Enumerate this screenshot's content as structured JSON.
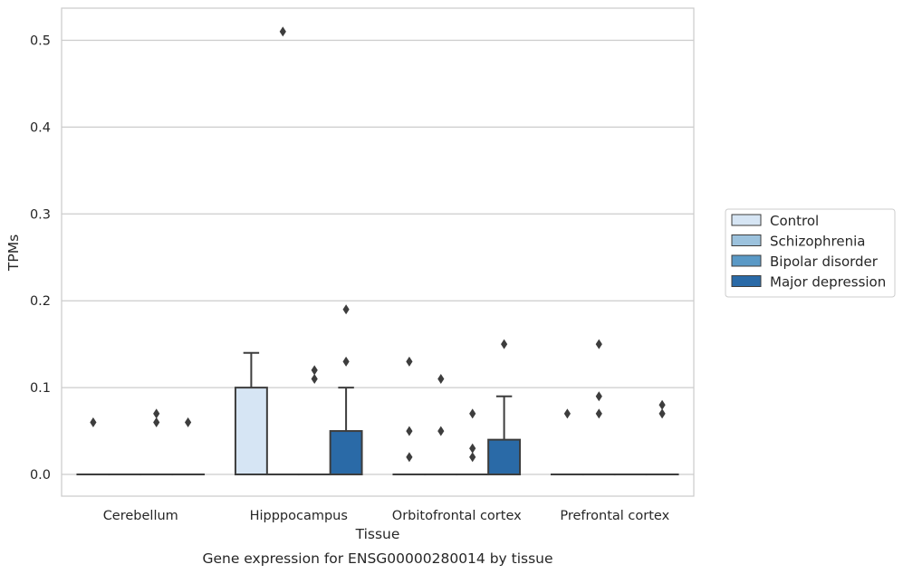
{
  "chart_data": {
    "type": "box",
    "caption": "Gene expression for ENSG00000280014 by tissue",
    "xlabel": "Tissue",
    "ylabel": "TPMs",
    "ylim": [
      -0.025,
      0.537
    ],
    "yticks": [
      0.0,
      0.1,
      0.2,
      0.3,
      0.4,
      0.5
    ],
    "ytick_labels": [
      "0.0",
      "0.1",
      "0.2",
      "0.3",
      "0.4",
      "0.5"
    ],
    "grid": "horizontal",
    "legend_position": "right",
    "categories": [
      "Cerebellum",
      "Hipppocampus",
      "Orbitofrontal cortex",
      "Prefrontal cortex"
    ],
    "series": [
      {
        "name": "Control",
        "color": "#d6e5f4",
        "boxes": [
          {
            "q1": 0,
            "median": 0,
            "q3": 0,
            "whisker_low": 0,
            "whisker_high": 0,
            "outliers": [
              0.06
            ]
          },
          {
            "q1": 0,
            "median": 0,
            "q3": 0.1,
            "whisker_low": 0,
            "whisker_high": 0.14,
            "outliers": []
          },
          {
            "q1": 0,
            "median": 0,
            "q3": 0,
            "whisker_low": 0,
            "whisker_high": 0,
            "outliers": [
              0.13,
              0.05,
              0.02
            ]
          },
          {
            "q1": 0,
            "median": 0,
            "q3": 0,
            "whisker_low": 0,
            "whisker_high": 0,
            "outliers": [
              0.07
            ]
          }
        ]
      },
      {
        "name": "Schizophrenia",
        "color": "#9cc2dd",
        "boxes": [
          {
            "q1": 0,
            "median": 0,
            "q3": 0,
            "whisker_low": 0,
            "whisker_high": 0,
            "outliers": []
          },
          {
            "q1": 0,
            "median": 0,
            "q3": 0,
            "whisker_low": 0,
            "whisker_high": 0,
            "outliers": [
              0.51
            ]
          },
          {
            "q1": 0,
            "median": 0,
            "q3": 0,
            "whisker_low": 0,
            "whisker_high": 0,
            "outliers": [
              0.11,
              0.05
            ]
          },
          {
            "q1": 0,
            "median": 0,
            "q3": 0,
            "whisker_low": 0,
            "whisker_high": 0,
            "outliers": [
              0.15,
              0.09,
              0.07
            ]
          }
        ]
      },
      {
        "name": "Bipolar disorder",
        "color": "#5a99c6",
        "boxes": [
          {
            "q1": 0,
            "median": 0,
            "q3": 0,
            "whisker_low": 0,
            "whisker_high": 0,
            "outliers": [
              0.07,
              0.06
            ]
          },
          {
            "q1": 0,
            "median": 0,
            "q3": 0,
            "whisker_low": 0,
            "whisker_high": 0,
            "outliers": [
              0.12,
              0.11
            ]
          },
          {
            "q1": 0,
            "median": 0,
            "q3": 0,
            "whisker_low": 0,
            "whisker_high": 0,
            "outliers": [
              0.07,
              0.03,
              0.02
            ]
          },
          {
            "q1": 0,
            "median": 0,
            "q3": 0,
            "whisker_low": 0,
            "whisker_high": 0,
            "outliers": []
          }
        ]
      },
      {
        "name": "Major depression",
        "color": "#2a6aa7",
        "boxes": [
          {
            "q1": 0,
            "median": 0,
            "q3": 0,
            "whisker_low": 0,
            "whisker_high": 0,
            "outliers": [
              0.06
            ]
          },
          {
            "q1": 0,
            "median": 0,
            "q3": 0.05,
            "whisker_low": 0,
            "whisker_high": 0.1,
            "outliers": [
              0.19,
              0.13
            ]
          },
          {
            "q1": 0,
            "median": 0,
            "q3": 0.04,
            "whisker_low": 0,
            "whisker_high": 0.09,
            "outliers": [
              0.15
            ]
          },
          {
            "q1": 0,
            "median": 0,
            "q3": 0,
            "whisker_low": 0,
            "whisker_high": 0,
            "outliers": [
              0.08,
              0.07
            ]
          }
        ]
      }
    ]
  }
}
